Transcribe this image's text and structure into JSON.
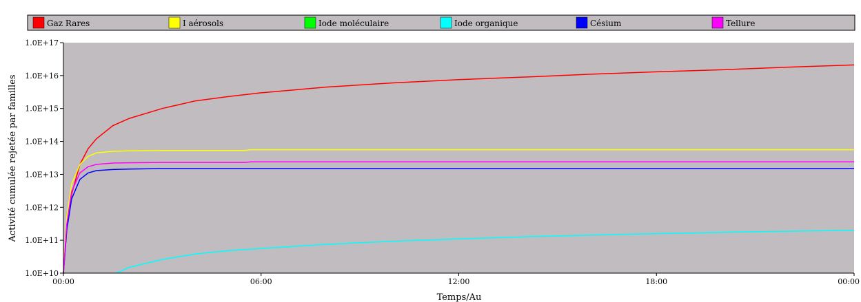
{
  "chart_data": {
    "type": "line",
    "title": "",
    "xlabel": "Temps/Au",
    "ylabel": "Activité cumulée rejetée par familles",
    "y_scale": "log",
    "ylim": [
      10000000000.0,
      1e+17
    ],
    "y_ticks": [
      "1.0E+10",
      "1.0E+11",
      "1.0E+12",
      "1.0E+13",
      "1.0E+14",
      "1.0E+15",
      "1.0E+16",
      "1.0E+17"
    ],
    "x_range_hours": [
      0,
      24
    ],
    "x_ticks": [
      {
        "hour": 0,
        "label": "00:00"
      },
      {
        "hour": 6,
        "label": "06:00"
      },
      {
        "hour": 12,
        "label": "12:00"
      },
      {
        "hour": 18,
        "label": "18:00"
      },
      {
        "hour": 24,
        "label": "00:00"
      }
    ],
    "legend_position": "top",
    "plot_background": "#c0bcbf",
    "series": [
      {
        "name": "Gaz Rares",
        "color": "#ff0000",
        "x": [
          0,
          0.1,
          0.25,
          0.5,
          0.75,
          1,
          1.5,
          2,
          3,
          4,
          5,
          6,
          8,
          10,
          12,
          14,
          16,
          18,
          20,
          22,
          24
        ],
        "y": [
          10000000000.0,
          200000000000.0,
          2500000000000.0,
          20000000000000.0,
          60000000000000.0,
          120000000000000.0,
          300000000000000.0,
          500000000000000.0,
          1000000000000000.0,
          1700000000000000.0,
          2300000000000000.0,
          3000000000000000.0,
          4500000000000000.0,
          6000000000000000.0,
          7500000000000000.0,
          9000000000000000.0,
          1.1e+16,
          1.3e+16,
          1.5e+16,
          1.8e+16,
          2.1e+16
        ]
      },
      {
        "name": "I aérosols",
        "color": "#ffff00",
        "x": [
          0,
          0.1,
          0.25,
          0.5,
          0.75,
          1,
          1.5,
          2,
          3,
          5.5,
          5.7,
          24
        ],
        "y": [
          10000000000.0,
          500000000000.0,
          5000000000000.0,
          20000000000000.0,
          35000000000000.0,
          45000000000000.0,
          50000000000000.0,
          52000000000000.0,
          53000000000000.0,
          53000000000000.0,
          56000000000000.0,
          56000000000000.0
        ]
      },
      {
        "name": "Iode moléculaire",
        "color": "#00ff00",
        "x": [
          0,
          0.05
        ],
        "y": [
          10000000000.0,
          10000000000.0
        ]
      },
      {
        "name": "Iode organique",
        "color": "#00ffff",
        "x": [
          1.6,
          2,
          3,
          4,
          5,
          6,
          8,
          10,
          12,
          14,
          16,
          18,
          20,
          22,
          24
        ],
        "y": [
          10000000000.0,
          15000000000.0,
          26000000000.0,
          38000000000.0,
          48000000000.0,
          56000000000.0,
          75000000000.0,
          93000000000.0,
          110000000000.0,
          127000000000.0,
          143000000000.0,
          158000000000.0,
          173000000000.0,
          187000000000.0,
          200000000000.0
        ]
      },
      {
        "name": "Césium",
        "color": "#0000ff",
        "x": [
          0,
          0.1,
          0.25,
          0.5,
          0.75,
          1,
          1.5,
          2,
          3,
          24
        ],
        "y": [
          10000000000.0,
          200000000000.0,
          1800000000000.0,
          7000000000000.0,
          11000000000000.0,
          13000000000000.0,
          14000000000000.0,
          14500000000000.0,
          15000000000000.0,
          15000000000000.0
        ]
      },
      {
        "name": "Tellure",
        "color": "#ff00ff",
        "x": [
          0,
          0.1,
          0.25,
          0.5,
          0.75,
          1,
          1.5,
          2,
          3,
          5.5,
          5.7,
          24
        ],
        "y": [
          10000000000.0,
          300000000000.0,
          3000000000000.0,
          11000000000000.0,
          17000000000000.0,
          20000000000000.0,
          22000000000000.0,
          22500000000000.0,
          23000000000000.0,
          23000000000000.0,
          24000000000000.0,
          24000000000000.0
        ]
      }
    ]
  }
}
